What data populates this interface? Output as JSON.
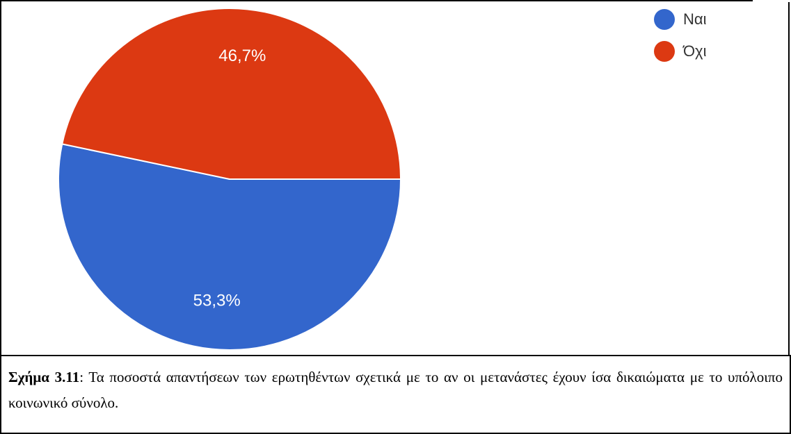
{
  "chart_data": {
    "type": "pie",
    "categories": [
      "Ναι",
      "Όχι"
    ],
    "values": [
      53.3,
      46.7
    ],
    "labels": [
      "53,3%",
      "46,7%"
    ],
    "colors": [
      "#3366cc",
      "#dc3912"
    ],
    "legend_position": "top-right"
  },
  "caption": {
    "figure_ref": "Σχήμα 3.11",
    "text": ": Τα ποσοστά απαντήσεων των ερωτηθέντων σχετικά με το αν οι μετανάστες έχουν ίσα δικαιώματα με το υπόλοιπο κοινωνικό σύνολο."
  }
}
